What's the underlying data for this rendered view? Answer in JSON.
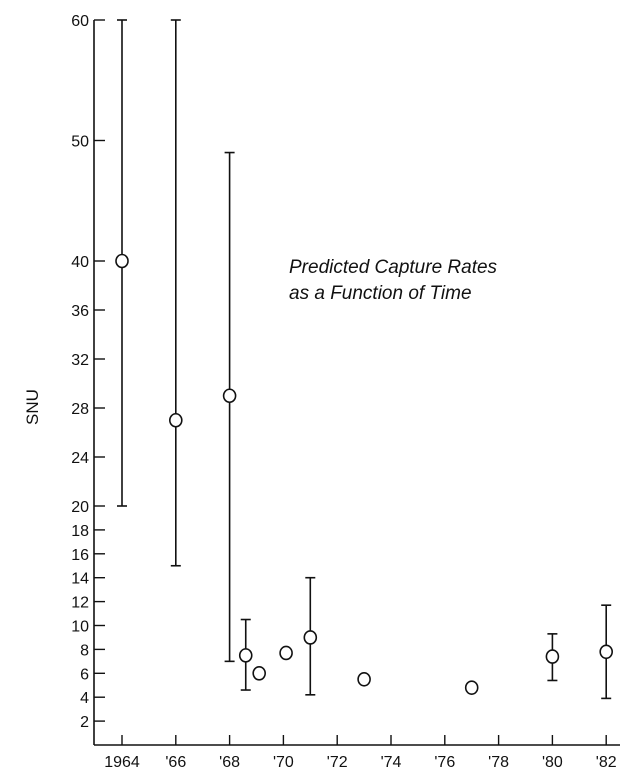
{
  "chart_data": {
    "type": "scatter",
    "title": "",
    "xlabel": "",
    "ylabel": "SNU",
    "annotation_lines": [
      "Predicted Capture Rates",
      "as a Function of Time"
    ],
    "x_ticks": [
      {
        "value": 1964,
        "label": "1964"
      },
      {
        "value": 1966,
        "label": "'66"
      },
      {
        "value": 1968,
        "label": "'68"
      },
      {
        "value": 1970,
        "label": "'70"
      },
      {
        "value": 1972,
        "label": "'72"
      },
      {
        "value": 1974,
        "label": "'74"
      },
      {
        "value": 1976,
        "label": "'76"
      },
      {
        "value": 1978,
        "label": "'78"
      },
      {
        "value": 1980,
        "label": "'80"
      },
      {
        "value": 1982,
        "label": "'82"
      }
    ],
    "y_scale": "piecewise-linear",
    "y_ticks": [
      {
        "value": 2,
        "label": "2"
      },
      {
        "value": 4,
        "label": "4"
      },
      {
        "value": 6,
        "label": "6"
      },
      {
        "value": 8,
        "label": "8"
      },
      {
        "value": 10,
        "label": "10"
      },
      {
        "value": 12,
        "label": "12"
      },
      {
        "value": 14,
        "label": "14"
      },
      {
        "value": 16,
        "label": "16"
      },
      {
        "value": 18,
        "label": "18"
      },
      {
        "value": 20,
        "label": "20"
      },
      {
        "value": 24,
        "label": "24"
      },
      {
        "value": 28,
        "label": "28"
      },
      {
        "value": 32,
        "label": "32"
      },
      {
        "value": 36,
        "label": "36"
      },
      {
        "value": 40,
        "label": "40"
      },
      {
        "value": 50,
        "label": "50"
      },
      {
        "value": 60,
        "label": "60"
      }
    ],
    "grid": false,
    "points": [
      {
        "x": 1964.0,
        "y": 40,
        "low": 20,
        "high": 60
      },
      {
        "x": 1966.0,
        "y": 27,
        "low": 15,
        "high": 60
      },
      {
        "x": 1968.0,
        "y": 29,
        "low": 7,
        "high": 49
      },
      {
        "x": 1968.6,
        "y": 7.5,
        "low": 4.6,
        "high": 10.5
      },
      {
        "x": 1969.1,
        "y": 6.0
      },
      {
        "x": 1970.1,
        "y": 7.7
      },
      {
        "x": 1971.0,
        "y": 9.0,
        "low": 4.2,
        "high": 14.0
      },
      {
        "x": 1973.0,
        "y": 5.5
      },
      {
        "x": 1977.0,
        "y": 4.8
      },
      {
        "x": 1980.0,
        "y": 7.4,
        "low": 5.4,
        "high": 9.3
      },
      {
        "x": 1982.0,
        "y": 7.8,
        "low": 3.9,
        "high": 11.7
      }
    ]
  }
}
